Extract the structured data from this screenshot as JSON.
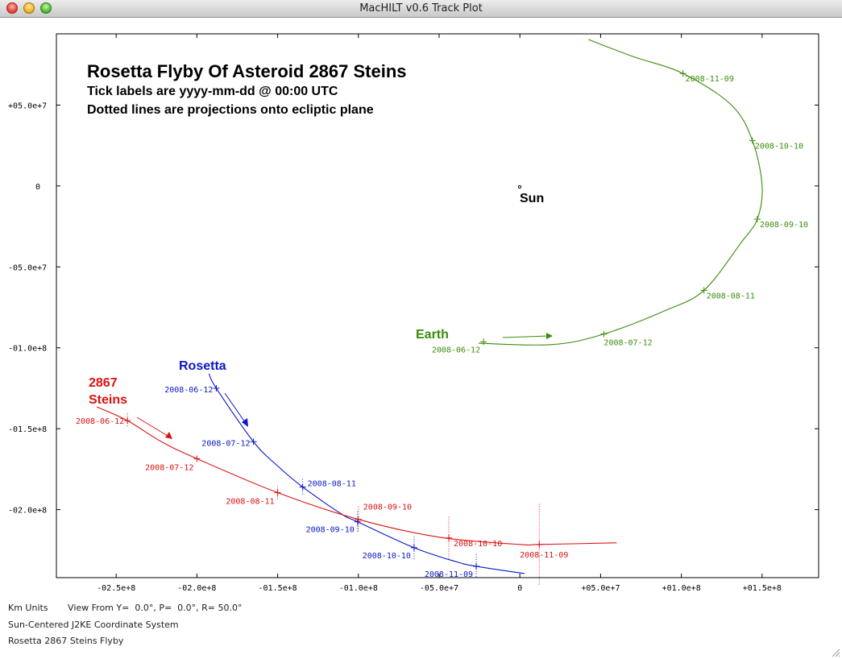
{
  "window": {
    "title": "MacHILT v0.6 Track Plot"
  },
  "plot": {
    "title": "Rosetta Flyby Of Asteroid 2867 Steins",
    "subtitle1": "Tick labels are yyyy-mm-dd @ 00:00 UTC",
    "subtitle2": "Dotted lines are projections onto ecliptic plane",
    "sun_label": "Sun",
    "earth_label": "Earth",
    "rosetta_label": "Rosetta",
    "steins_label_1": "2867",
    "steins_label_2": "Steins"
  },
  "footer": {
    "units": "Km Units",
    "view_from": "View From Y=  0.0°, P=  0.0°, R= 50.0°",
    "coord_system": "Sun-Centered J2KE Coordinate System",
    "description": "Rosetta 2867 Steins Flyby"
  },
  "colors": {
    "earth": "#3a8c0a",
    "rosetta": "#0a17c8",
    "steins": "#dd1111",
    "text": "#000000"
  },
  "chart_data": {
    "type": "line",
    "x_range": [
      -287000000,
      185000000
    ],
    "y_range": [
      -242000000,
      94000000
    ],
    "x_ticks": [
      {
        "v": -250000000,
        "label": "-02.5e+8"
      },
      {
        "v": -200000000,
        "label": "-02.0e+8"
      },
      {
        "v": -150000000,
        "label": "-01.5e+8"
      },
      {
        "v": -100000000,
        "label": "-01.0e+8"
      },
      {
        "v": -50000000,
        "label": "-05.0e+7"
      },
      {
        "v": 0,
        "label": "0"
      },
      {
        "v": 50000000,
        "label": "+05.0e+7"
      },
      {
        "v": 100000000,
        "label": "+01.0e+8"
      },
      {
        "v": 150000000,
        "label": "+01.5e+8"
      }
    ],
    "y_ticks": [
      {
        "v": 50000000,
        "label": "+05.0e+7"
      },
      {
        "v": 0,
        "label": "0"
      },
      {
        "v": -50000000,
        "label": "-05.0e+7"
      },
      {
        "v": -100000000,
        "label": "-01.0e+8"
      },
      {
        "v": -150000000,
        "label": "-01.5e+8"
      },
      {
        "v": -200000000,
        "label": "-02.0e+8"
      }
    ],
    "sun": [
      0,
      0
    ],
    "series": [
      {
        "name": "Earth",
        "color": "#3a8c0a",
        "label_side": "after",
        "path": [
          [
            -25600000,
            -97200000
          ],
          [
            20000000,
            -98000000
          ],
          [
            52000000,
            -91500000
          ],
          [
            90000000,
            -77000000
          ],
          [
            114000000,
            -64500000
          ],
          [
            137000000,
            -35000000
          ],
          [
            147000000,
            -20500000
          ],
          [
            150000000,
            0
          ],
          [
            144000000,
            28000000
          ],
          [
            131000000,
            50000000
          ],
          [
            101000000,
            69500000
          ],
          [
            70000000,
            80000000
          ],
          [
            42500000,
            90500000
          ]
        ],
        "marks": [
          {
            "x": -22500000,
            "y": -96300000,
            "z": 0,
            "label": "2008-06-12"
          },
          {
            "x": 52000000,
            "y": -91500000,
            "z": 0,
            "label": "2008-07-12"
          },
          {
            "x": 114000000,
            "y": -64500000,
            "z": 0,
            "label": "2008-08-11"
          },
          {
            "x": 147000000,
            "y": -20500000,
            "z": 0,
            "label": "2008-09-10"
          },
          {
            "x": 144000000,
            "y": 28000000,
            "z": 0,
            "label": "2008-10-10"
          },
          {
            "x": 101000000,
            "y": 69500000,
            "z": 0,
            "label": "2008-11-09"
          }
        ]
      },
      {
        "name": "Rosetta",
        "color": "#0a17c8",
        "label_side": "before",
        "path": [
          [
            -192500000,
            -116000000
          ],
          [
            -188000000,
            -125000000
          ],
          [
            -165000000,
            -158000000
          ],
          [
            -150000000,
            -173000000
          ],
          [
            -134500000,
            -186000000
          ],
          [
            -110000000,
            -203000000
          ],
          [
            -100500000,
            -207500000
          ],
          [
            -65500000,
            -223500000
          ],
          [
            -40000000,
            -232000000
          ],
          [
            -27000000,
            -235000000
          ],
          [
            3000000,
            -239500000
          ]
        ],
        "marks": [
          {
            "x": -188000000,
            "y": -125000000,
            "z": 0,
            "label": "2008-06-12"
          },
          {
            "x": -165000000,
            "y": -158000000,
            "z": 0,
            "label": "2008-07-12"
          },
          {
            "x": -134500000,
            "y": -186000000,
            "z": 5000000,
            "label": "2008-08-11"
          },
          {
            "x": -100500000,
            "y": -207500000,
            "z": 6500000,
            "label": "2008-09-10"
          },
          {
            "x": -65500000,
            "y": -223500000,
            "z": 7000000,
            "label": "2008-10-10"
          },
          {
            "x": -27000000,
            "y": -235000000,
            "z": 7500000,
            "label": "2008-11-09"
          }
        ]
      },
      {
        "name": "2867 Steins",
        "color": "#dd1111",
        "label_side": "mixed",
        "path": [
          [
            -262000000,
            -136500000
          ],
          [
            -243000000,
            -145000000
          ],
          [
            -222000000,
            -158000000
          ],
          [
            -200000000,
            -168500000
          ],
          [
            -150000000,
            -189500000
          ],
          [
            -100000000,
            -206000000
          ],
          [
            -50000000,
            -217000000
          ],
          [
            0,
            -221500000
          ],
          [
            12000000,
            -221500000
          ],
          [
            60000000,
            -220500000
          ]
        ],
        "marks": [
          {
            "x": -243000000,
            "y": -145000000,
            "z": 4500000,
            "label": "2008-06-12"
          },
          {
            "x": -200000000,
            "y": -168500000,
            "z": 0,
            "label": "2008-07-12"
          },
          {
            "x": -150000000,
            "y": -189500000,
            "z": 4000000,
            "label": "2008-08-11"
          },
          {
            "x": -100000000,
            "y": -206000000,
            "z": 8000000,
            "label": "2008-09-10"
          },
          {
            "x": -44000000,
            "y": -217500000,
            "z": 13000000,
            "label": "2008-10-10"
          },
          {
            "x": 12000000,
            "y": -221500000,
            "z": 25000000,
            "label": "2008-11-09"
          }
        ]
      }
    ]
  }
}
